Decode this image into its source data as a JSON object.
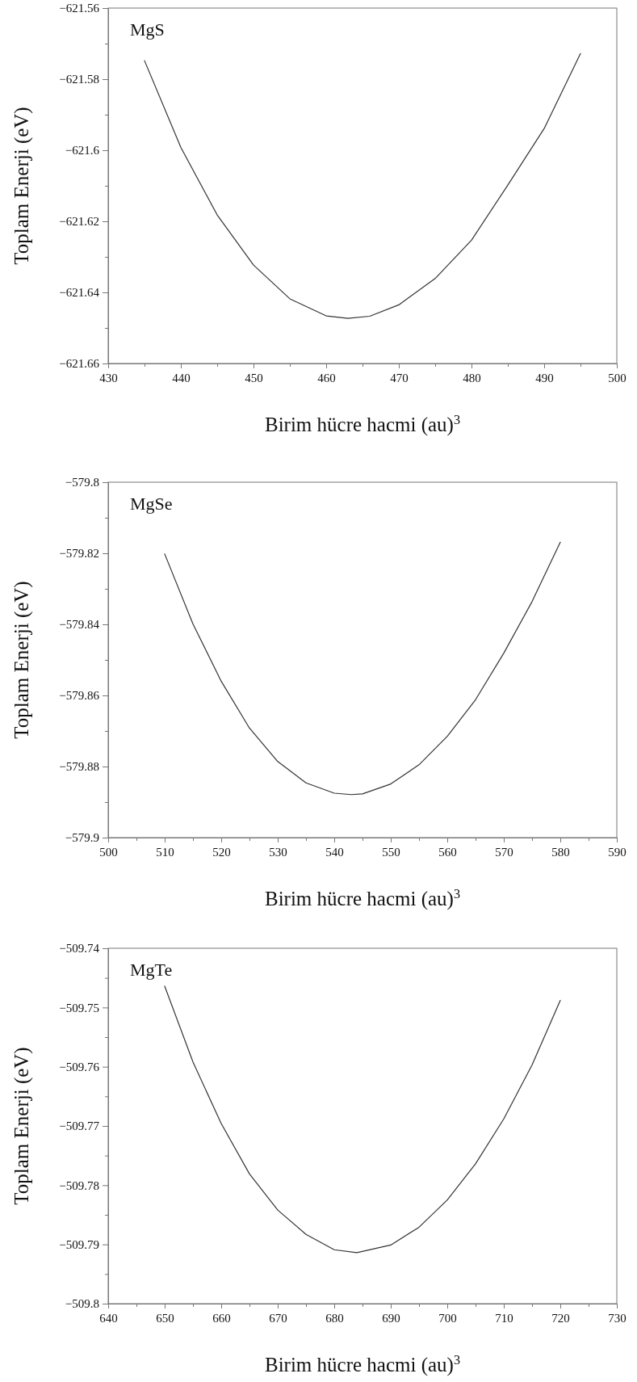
{
  "chart_data": [
    {
      "type": "line",
      "title": "MgS",
      "xlabel": "Birim hücre hacmi (au)$^{3}$",
      "ylabel": "Toplam Enerji (eV)",
      "marker": "none",
      "line_style": "solid",
      "grid": false,
      "xlim": [
        430,
        500
      ],
      "ylim": [
        -621.66,
        -621.56
      ],
      "xticks": [
        430,
        {
          "value": 435,
          "label": null
        },
        440,
        {
          "value": 445,
          "label": null
        },
        450,
        {
          "value": 455,
          "label": null
        },
        460,
        {
          "value": 465,
          "label": null
        },
        470,
        {
          "value": 475,
          "label": null
        },
        480,
        {
          "value": 485,
          "label": null
        },
        490,
        {
          "value": 495,
          "label": null
        },
        500
      ],
      "yticks": [
        {
          "value": -621.66,
          "label": "−621.66"
        },
        {
          "value": -621.65,
          "label": null
        },
        {
          "value": -621.64,
          "label": "−621.64"
        },
        {
          "value": -621.63,
          "label": null
        },
        {
          "value": -621.62,
          "label": "−621.62"
        },
        {
          "value": -621.61,
          "label": null
        },
        {
          "value": -621.6,
          "label": "−621.6"
        },
        {
          "value": -621.59,
          "label": null
        },
        {
          "value": -621.58,
          "label": "−621.58"
        },
        {
          "value": -621.57,
          "label": null
        },
        {
          "value": -621.56,
          "label": "−621.56"
        }
      ],
      "x": [
        435,
        440,
        445,
        450,
        455,
        460,
        463,
        466,
        470,
        475,
        480,
        485,
        490,
        495
      ],
      "series": [
        {
          "color": "#333333",
          "values": [
            -621.5748,
            -621.5992,
            -621.6182,
            -621.6323,
            -621.6418,
            -621.6466,
            -621.6473,
            -621.6467,
            -621.6435,
            -621.6361,
            -621.6253,
            -621.6098,
            -621.5939,
            -621.5728
          ]
        }
      ]
    },
    {
      "type": "line",
      "title": "MgSe",
      "xlabel": "Birim hücre hacmi (au)$^{3}$",
      "ylabel": "Toplam Enerji (eV)",
      "marker": "none",
      "line_style": "solid",
      "grid": false,
      "xlim": [
        500,
        590
      ],
      "ylim": [
        -579.9,
        -579.8
      ],
      "xticks": [
        500,
        {
          "value": 505,
          "label": null
        },
        510,
        {
          "value": 515,
          "label": null
        },
        520,
        {
          "value": 525,
          "label": null
        },
        530,
        {
          "value": 535,
          "label": null
        },
        540,
        {
          "value": 545,
          "label": null
        },
        550,
        {
          "value": 555,
          "label": null
        },
        560,
        {
          "value": 565,
          "label": null
        },
        570,
        {
          "value": 575,
          "label": null
        },
        580,
        {
          "value": 585,
          "label": null
        },
        590
      ],
      "yticks": [
        {
          "value": -579.9,
          "label": "−579.9"
        },
        {
          "value": -579.89,
          "label": null
        },
        {
          "value": -579.88,
          "label": "−579.88"
        },
        {
          "value": -579.87,
          "label": null
        },
        {
          "value": -579.86,
          "label": "−579.86"
        },
        {
          "value": -579.85,
          "label": null
        },
        {
          "value": -579.84,
          "label": "−579.84"
        },
        {
          "value": -579.83,
          "label": null
        },
        {
          "value": -579.82,
          "label": "−579.82"
        },
        {
          "value": -579.81,
          "label": null
        },
        {
          "value": -579.8,
          "label": "−579.8"
        }
      ],
      "x": [
        510,
        515,
        520,
        525,
        530,
        535,
        540,
        543,
        545,
        550,
        555,
        560,
        565,
        570,
        575,
        580
      ],
      "series": [
        {
          "color": "#333333",
          "values": [
            -579.8202,
            -579.8399,
            -579.856,
            -579.8692,
            -579.8786,
            -579.8846,
            -579.8875,
            -579.8879,
            -579.8877,
            -579.8849,
            -579.8795,
            -579.8715,
            -579.8612,
            -579.8481,
            -579.8336,
            -579.8169
          ]
        }
      ]
    },
    {
      "type": "line",
      "title": "MgTe",
      "xlabel": "Birim hücre hacmi (au)$^{3}$",
      "ylabel": "Toplam Enerji (eV)",
      "marker": "none",
      "line_style": "solid",
      "grid": false,
      "xlim": [
        640,
        730
      ],
      "ylim": [
        -509.8,
        -509.74
      ],
      "xticks": [
        640,
        {
          "value": 645,
          "label": null
        },
        650,
        {
          "value": 655,
          "label": null
        },
        660,
        {
          "value": 665,
          "label": null
        },
        670,
        {
          "value": 675,
          "label": null
        },
        680,
        {
          "value": 685,
          "label": null
        },
        690,
        {
          "value": 695,
          "label": null
        },
        700,
        {
          "value": 705,
          "label": null
        },
        710,
        {
          "value": 715,
          "label": null
        },
        720,
        {
          "value": 725,
          "label": null
        },
        730
      ],
      "yticks": [
        {
          "value": -509.8,
          "label": "−509.8"
        },
        {
          "value": -509.795,
          "label": null
        },
        {
          "value": -509.79,
          "label": "−509.79"
        },
        {
          "value": -509.785,
          "label": null
        },
        {
          "value": -509.78,
          "label": "−509.78"
        },
        {
          "value": -509.775,
          "label": null
        },
        {
          "value": -509.77,
          "label": "−509.77"
        },
        {
          "value": -509.765,
          "label": null
        },
        {
          "value": -509.76,
          "label": "−509.76"
        },
        {
          "value": -509.755,
          "label": null
        },
        {
          "value": -509.75,
          "label": "−509.75"
        },
        {
          "value": -509.745,
          "label": null
        },
        {
          "value": -509.74,
          "label": "−509.74"
        }
      ],
      "x": [
        650,
        655,
        660,
        665,
        670,
        675,
        680,
        684,
        690,
        695,
        700,
        705,
        710,
        715,
        720
      ],
      "series": [
        {
          "color": "#333333",
          "values": [
            -509.7464,
            -509.7592,
            -509.7696,
            -509.7781,
            -509.7842,
            -509.7883,
            -509.7909,
            -509.7914,
            -509.7901,
            -509.7871,
            -509.7825,
            -509.7764,
            -509.7688,
            -509.7597,
            -509.7488
          ]
        }
      ]
    }
  ]
}
